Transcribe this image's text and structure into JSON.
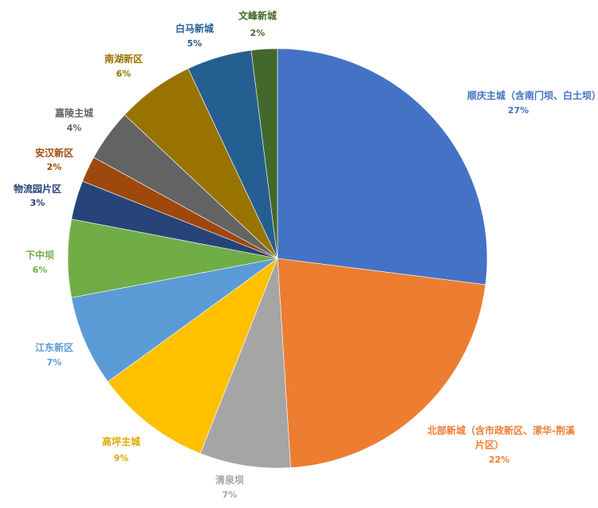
{
  "chart_data": {
    "type": "pie",
    "categories": [
      "顺庆主城（含南门坝、白土坝）",
      "北部新城（含市政新区、潆华-荆溪片区）",
      "清泉坝",
      "高坪主城",
      "江东新区",
      "下中坝",
      "物流园片区",
      "安汉新区",
      "嘉陵主城",
      "南湖新区",
      "白马新城",
      "文峰新城"
    ],
    "values": [
      27,
      22,
      7,
      9,
      7,
      6,
      3,
      2,
      4,
      6,
      5,
      2
    ],
    "value_labels": [
      "27%",
      "22%",
      "7%",
      "9%",
      "7%",
      "6%",
      "3%",
      "2%",
      "4%",
      "6%",
      "5%",
      "2%"
    ],
    "colors": [
      "#4472C4",
      "#ED7D31",
      "#A5A5A5",
      "#FFC000",
      "#5B9BD5",
      "#70AD47",
      "#264478",
      "#9E480E",
      "#636363",
      "#997300",
      "#255E91",
      "#43682B"
    ],
    "label_colors": [
      "#4472C4",
      "#ED7D31",
      "#A5A5A5",
      "#E0A800",
      "#5B9BD5",
      "#70AD47",
      "#264478",
      "#9E480E",
      "#636363",
      "#997300",
      "#255E91",
      "#43682B"
    ],
    "start_angle_deg": 0,
    "direction": "clockwise",
    "legend": "none",
    "title": ""
  }
}
